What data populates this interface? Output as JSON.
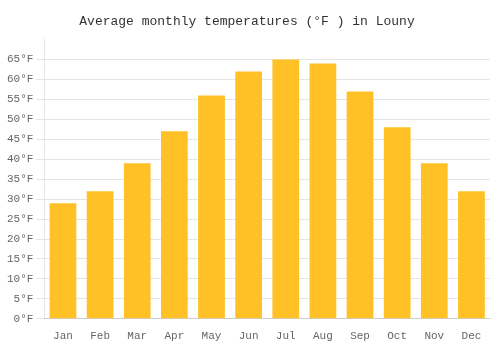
{
  "chart_data": {
    "type": "bar",
    "title": "Average monthly temperatures (°F ) in Louny",
    "categories": [
      "Jan",
      "Feb",
      "Mar",
      "Apr",
      "May",
      "Jun",
      "Jul",
      "Aug",
      "Sep",
      "Oct",
      "Nov",
      "Dec"
    ],
    "values": [
      29,
      32,
      39,
      47,
      56,
      62,
      65,
      64,
      57,
      48,
      39,
      32
    ],
    "color": "#FFC125",
    "ylim": [
      0,
      70
    ],
    "yticks": [
      {
        "value": 0,
        "label": "0°F"
      },
      {
        "value": 5,
        "label": "5°F"
      },
      {
        "value": 10,
        "label": "10°F"
      },
      {
        "value": 15,
        "label": "15°F"
      },
      {
        "value": 20,
        "label": "20°F"
      },
      {
        "value": 25,
        "label": "25°F"
      },
      {
        "value": 30,
        "label": "30°F"
      },
      {
        "value": 35,
        "label": "35°F"
      },
      {
        "value": 40,
        "label": "40°F"
      },
      {
        "value": 45,
        "label": "45°F"
      },
      {
        "value": 50,
        "label": "50°F"
      },
      {
        "value": 55,
        "label": "55°F"
      },
      {
        "value": 60,
        "label": "60°F"
      },
      {
        "value": 65,
        "label": "65°F"
      }
    ],
    "grid": true
  }
}
